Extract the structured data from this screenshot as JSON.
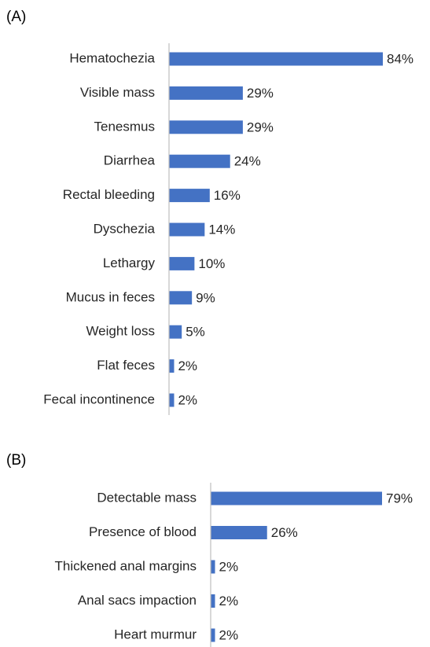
{
  "chart_data": [
    {
      "type": "bar",
      "panel": "(A)",
      "color": "#4472c4",
      "categories": [
        "Hematochezia",
        "Visible mass",
        "Tenesmus",
        "Diarrhea",
        "Rectal bleeding",
        "Dyschezia",
        "Lethargy",
        "Mucus in feces",
        "Weight loss",
        "Flat feces",
        "Fecal incontinence"
      ],
      "values": [
        84,
        29,
        29,
        24,
        16,
        14,
        10,
        9,
        5,
        2,
        2
      ],
      "value_labels": [
        "84%",
        "29%",
        "29%",
        "24%",
        "16%",
        "14%",
        "10%",
        "9%",
        "5%",
        "2%",
        "2%"
      ]
    },
    {
      "type": "bar",
      "panel": "(B)",
      "color": "#4472c4",
      "categories": [
        "Detectable mass",
        "Presence of blood",
        "Thickened anal margins",
        "Anal sacs impaction",
        "Heart murmur"
      ],
      "values": [
        79,
        26,
        2,
        2,
        2
      ],
      "value_labels": [
        "79%",
        "26%",
        "2%",
        "2%",
        "2%"
      ]
    }
  ]
}
